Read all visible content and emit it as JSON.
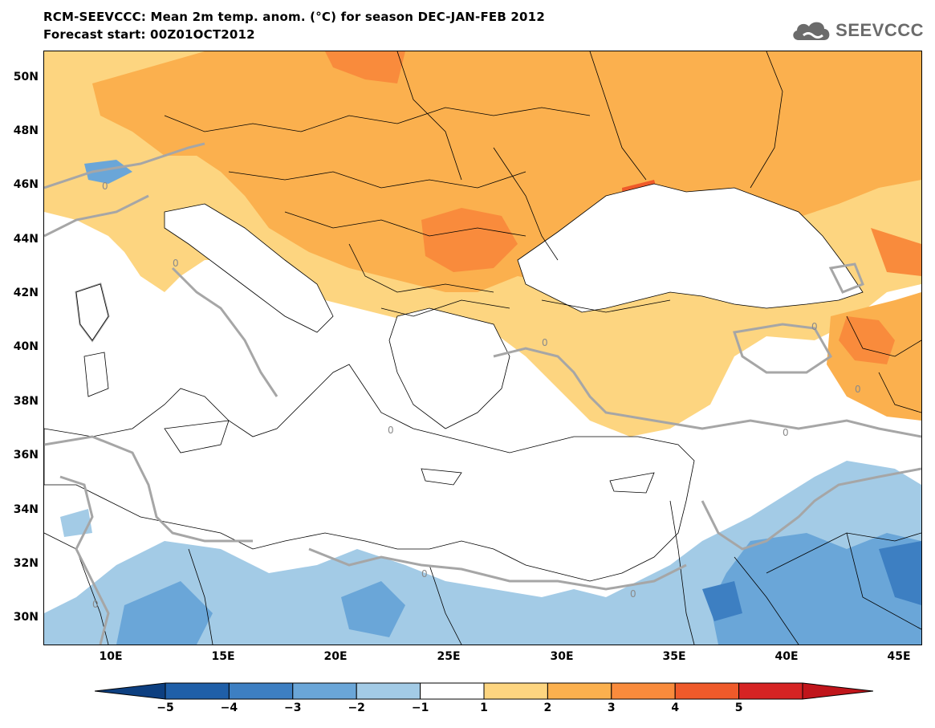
{
  "header": {
    "title_line1": "RCM-SEEVCCC: Mean 2m temp. anom. (°C) for season DEC-JAN-FEB 2012",
    "title_line2": "Forecast start: 00Z01OCT2012",
    "logo_text": "SEEVCCC"
  },
  "map": {
    "lat_labels": [
      "50N",
      "48N",
      "46N",
      "44N",
      "42N",
      "40N",
      "38N",
      "36N",
      "34N",
      "32N",
      "30N"
    ],
    "lon_labels": [
      "10E",
      "15E",
      "20E",
      "25E",
      "30E",
      "35E",
      "40E",
      "45E"
    ],
    "contour_label": "0"
  },
  "colorbar": {
    "labels": [
      "−5",
      "−4",
      "−3",
      "−2",
      "−1",
      "1",
      "2",
      "3",
      "4",
      "5"
    ],
    "colors": [
      "#1f5fa8",
      "#3d7fc2",
      "#6aa6d8",
      "#a3cbe6",
      "#ffffff",
      "#fdd580",
      "#fbb04e",
      "#f98b3c",
      "#ef5a2a",
      "#d62323"
    ],
    "end_low": "#0d3f80",
    "end_high": "#c0151b"
  }
}
